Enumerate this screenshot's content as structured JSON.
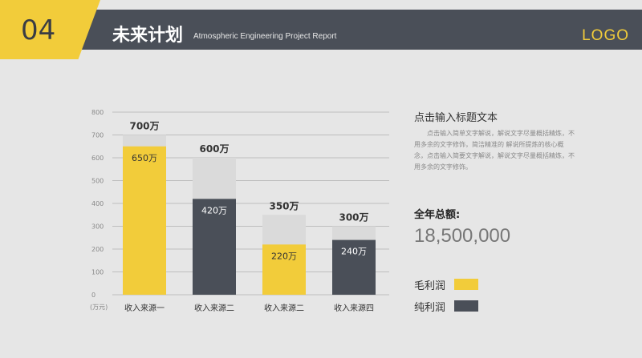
{
  "header": {
    "number": "04",
    "title": "未来计划",
    "subtitle": "Atmospheric Engineering  Project Report",
    "logo": "LOGO"
  },
  "colors": {
    "accent": "#f2cc3a",
    "dark": "#4a4f58",
    "background": "#e6e6e6"
  },
  "side": {
    "title": "点击输入标题文本",
    "body": "点击输入简单文字解说，解说文字尽量概括精炼，不用多余的文字修饰，简洁精准的 解说所提炼的核心概念，点击输入简要文字解说，解说文字尽量概括精炼，不用多余的文字修饰。",
    "total_label": "全年总额:",
    "total_value": "18,500,000"
  },
  "chart_data": {
    "type": "bar",
    "categories": [
      "收入来源一",
      "收入来源二",
      "收入来源二",
      "收入来源四"
    ],
    "y_unit_label": "(万元)",
    "ylim": [
      0,
      800
    ],
    "yticks": [
      0,
      100,
      200,
      300,
      400,
      500,
      600,
      700,
      800
    ],
    "totals": [
      700,
      600,
      350,
      300
    ],
    "totals_labels": [
      "700万",
      "600万",
      "350万",
      "300万"
    ],
    "series": [
      {
        "name": "毛利润",
        "color": "#f2cc3a",
        "bars": [
          0,
          2
        ]
      },
      {
        "name": "纯利润",
        "color": "#4a4f58",
        "bars": [
          1,
          3
        ]
      }
    ],
    "values": [
      650,
      420,
      220,
      240
    ],
    "value_labels": [
      "650万",
      "420万",
      "220万",
      "240万"
    ],
    "grid": true,
    "legend_position": "right"
  }
}
